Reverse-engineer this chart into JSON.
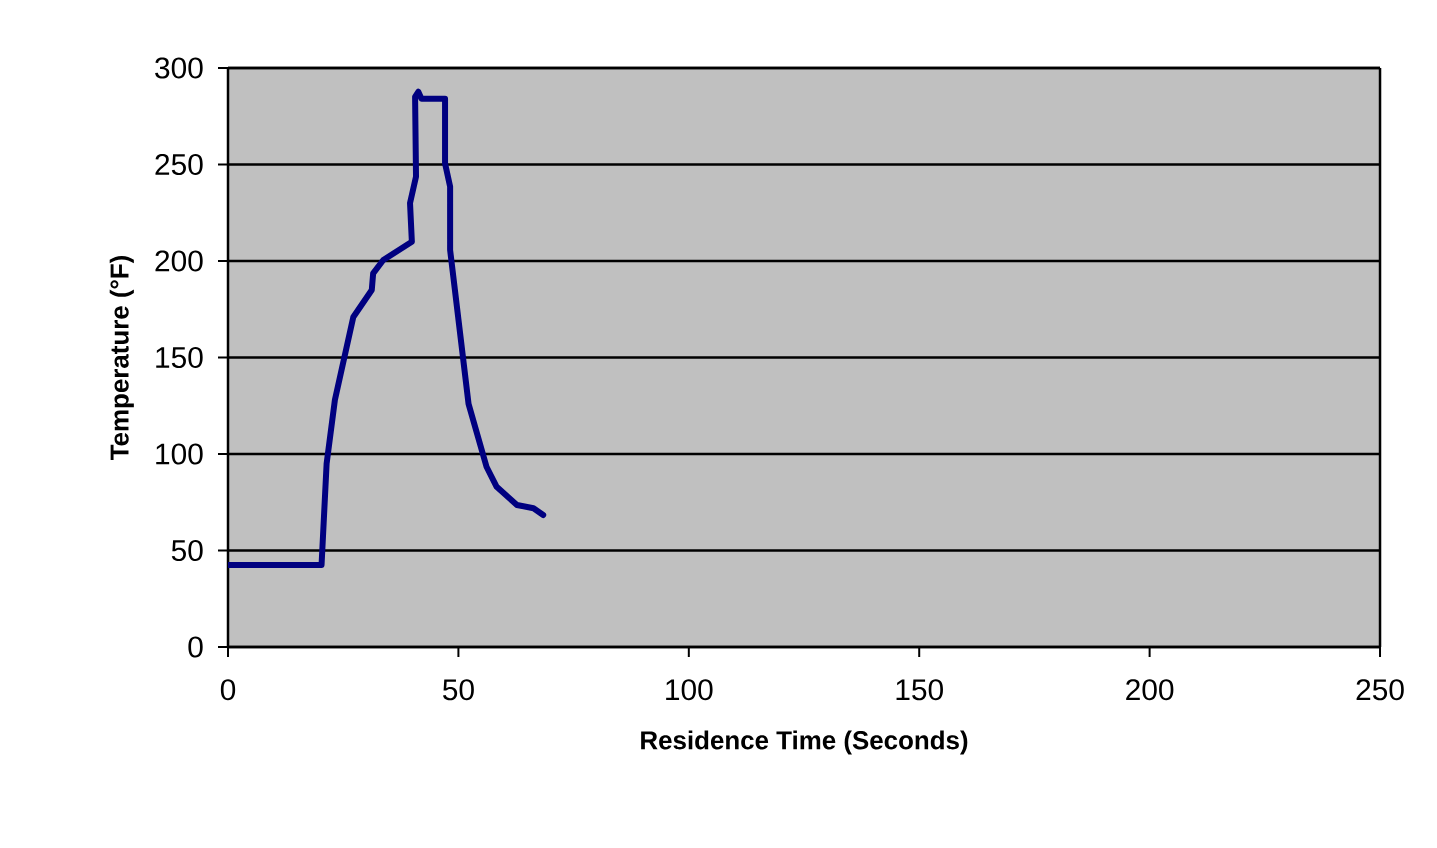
{
  "chart_data": {
    "type": "line",
    "xlabel": "Residence Time (Seconds)",
    "ylabel": "Temperature (°F)",
    "x": [
      0,
      20.3,
      21.4,
      23.2,
      27.2,
      31.2,
      31.5,
      33.7,
      39.9,
      39.5,
      40.8,
      40.6,
      41.3,
      42,
      47.1,
      47.1,
      48.2,
      48.2,
      52.2,
      56.1,
      58.3,
      62.7,
      66.3,
      68.4
    ],
    "values": [
      42.5,
      42.5,
      95,
      128,
      171,
      185,
      193.6,
      200.5,
      210,
      230,
      243.7,
      285,
      287.7,
      284,
      284,
      250.6,
      238.5,
      205.7,
      126,
      93.4,
      83,
      73.6,
      71.9,
      68.4
    ],
    "color": "#000080",
    "xlim": [
      0,
      250
    ],
    "ylim": [
      0,
      300
    ],
    "xticks": [
      0,
      50,
      100,
      150,
      200,
      250
    ],
    "yticks": [
      0,
      50,
      100,
      150,
      200,
      250,
      300
    ],
    "grid": "y",
    "marker": "none",
    "line_style": "solid"
  }
}
